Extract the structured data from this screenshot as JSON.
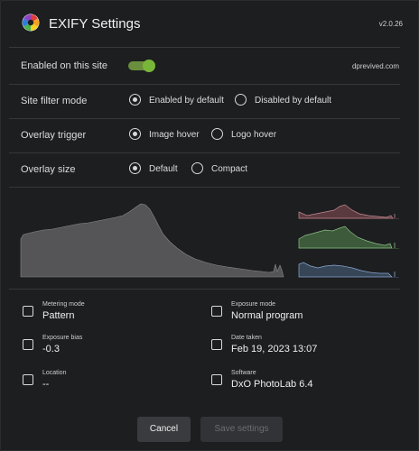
{
  "header": {
    "title": "EXIFY Settings",
    "version": "v2.0.26"
  },
  "enabled": {
    "label": "Enabled on this site",
    "on": true,
    "site": "dprevived.com",
    "accent": "#78b63a"
  },
  "site_filter": {
    "label": "Site filter mode",
    "options": [
      "Enabled by default",
      "Disabled by default"
    ],
    "selected": 0
  },
  "overlay_trigger": {
    "label": "Overlay trigger",
    "options": [
      "Image hover",
      "Logo hover"
    ],
    "selected": 0
  },
  "overlay_size": {
    "label": "Overlay size",
    "options": [
      "Default",
      "Compact"
    ],
    "selected": 0
  },
  "histogram": {
    "luminance_color": "#555557",
    "channel_colors": {
      "red": "#b57480",
      "green": "#7fb27a",
      "blue": "#7f9fd0"
    }
  },
  "metadata": [
    {
      "label": "Metering mode",
      "value": "Pattern",
      "checked": false
    },
    {
      "label": "Exposure mode",
      "value": "Normal program",
      "checked": false
    },
    {
      "label": "Exposure bias",
      "value": "-0.3",
      "checked": false
    },
    {
      "label": "Date taken",
      "value": "Feb 19, 2023 13:07",
      "checked": false
    },
    {
      "label": "Location",
      "value": "--",
      "checked": false
    },
    {
      "label": "Software",
      "value": "DxO PhotoLab 6.4",
      "checked": false
    }
  ],
  "buttons": {
    "cancel": "Cancel",
    "save": "Save settings"
  }
}
